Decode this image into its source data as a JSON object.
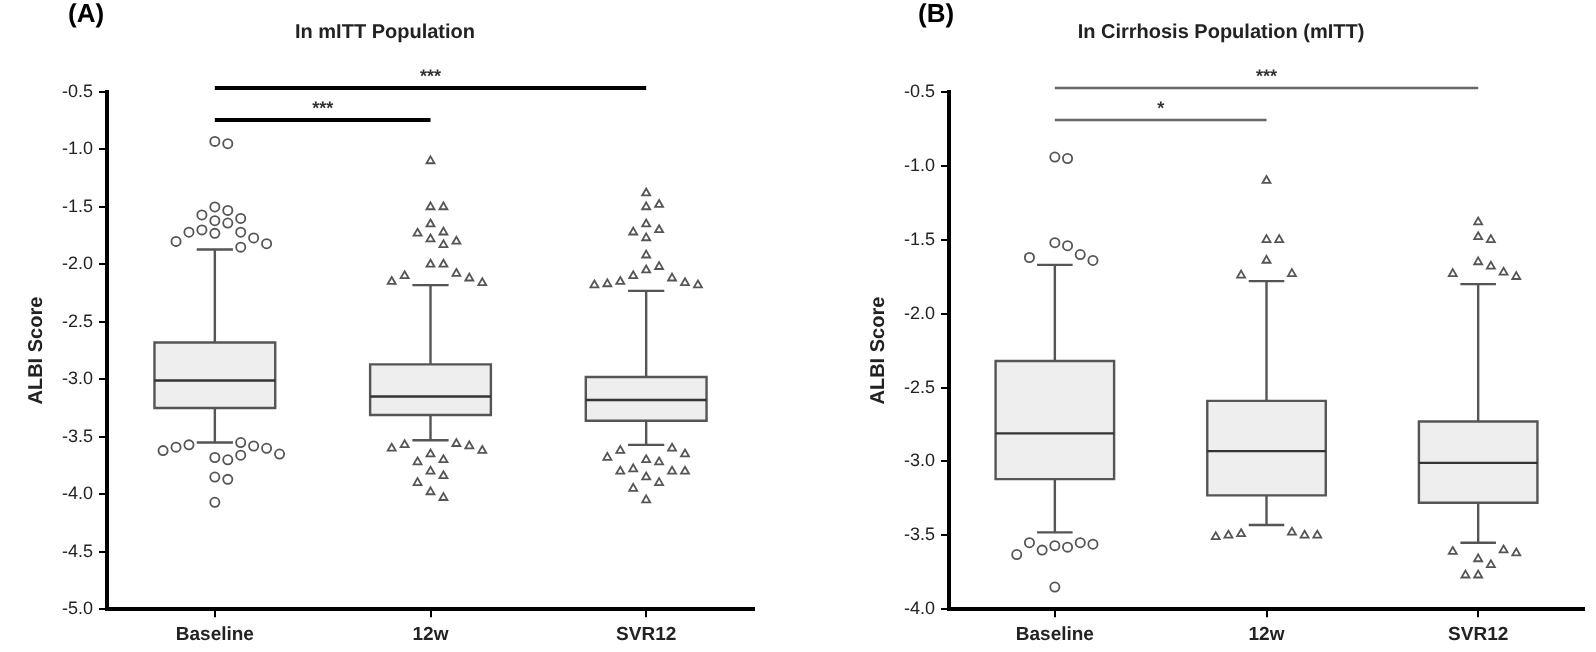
{
  "chart_data": [
    {
      "type": "box",
      "title": "In mITT Population",
      "ylabel": "ALBI Score",
      "annotations": [
        "(A)",
        "***",
        "***"
      ],
      "categories": [
        "Baseline",
        "12w",
        "SVR12"
      ],
      "ylim": [
        -5,
        -0.5
      ],
      "yticks": [
        {
          "value": -5,
          "label": "-5.0"
        },
        {
          "value": -4.5,
          "label": "-4.5"
        },
        {
          "value": -4,
          "label": "-4.0"
        },
        {
          "value": -3.5,
          "label": "-3.5"
        },
        {
          "value": -3,
          "label": "-3.0"
        },
        {
          "value": -2.5,
          "label": "-2.5"
        },
        {
          "value": -2,
          "label": "-2.0"
        },
        {
          "value": -1.5,
          "label": "-1.5"
        },
        {
          "value": -1,
          "label": "-1.0"
        },
        {
          "value": -0.5,
          "label": "-0.5"
        }
      ],
      "grid": false,
      "legend": false,
      "series": [
        {
          "type": "box",
          "color": "#eeeeee",
          "boxes": [
            {
              "low": -3.55,
              "q1": -3.25,
              "median": -3.01,
              "q3": -2.68,
              "high": -1.87
            },
            {
              "low": -3.53,
              "q1": -3.31,
              "median": -3.15,
              "q3": -2.87,
              "high": -2.18
            },
            {
              "low": -3.57,
              "q1": -3.36,
              "median": -3.18,
              "q3": -2.98,
              "high": -2.23
            }
          ]
        },
        {
          "type": "scatter",
          "marker": "circle",
          "color": "#555555",
          "x": [
            "Baseline",
            "Baseline",
            "Baseline",
            "Baseline",
            "Baseline",
            "Baseline",
            "Baseline",
            "Baseline",
            "Baseline",
            "Baseline",
            "Baseline",
            "Baseline",
            "Baseline",
            "Baseline",
            "Baseline",
            "Baseline",
            "Baseline",
            "Baseline",
            "Baseline",
            "Baseline",
            "Baseline",
            "Baseline",
            "Baseline",
            "Baseline",
            "Baseline",
            "Baseline",
            "Baseline",
            "Baseline",
            "Baseline"
          ],
          "values": [
            -0.93,
            -0.95,
            -1.5,
            -1.53,
            -1.57,
            -1.6,
            -1.62,
            -1.64,
            -1.7,
            -1.72,
            -1.72,
            -1.73,
            -1.77,
            -1.8,
            -1.82,
            -1.85,
            -3.55,
            -3.57,
            -3.58,
            -3.59,
            -3.6,
            -3.62,
            -3.65,
            -3.66,
            -3.68,
            -3.7,
            -3.85,
            -3.87,
            -4.07
          ]
        },
        {
          "type": "scatter",
          "marker": "triangle",
          "color": "#555555",
          "x": [
            "12w",
            "12w",
            "12w",
            "12w",
            "12w",
            "12w",
            "12w",
            "12w",
            "12w",
            "12w",
            "12w",
            "12w",
            "12w",
            "12w",
            "12w",
            "12w",
            "12w",
            "12w",
            "12w",
            "12w",
            "12w",
            "12w",
            "12w",
            "12w",
            "12w",
            "12w",
            "12w",
            "12w",
            "12w"
          ],
          "values": [
            -1.1,
            -1.5,
            -1.5,
            -1.65,
            -1.72,
            -1.73,
            -1.78,
            -1.8,
            -1.83,
            -2.0,
            -2.0,
            -2.08,
            -2.1,
            -2.12,
            -2.15,
            -2.16,
            -3.56,
            -3.57,
            -3.58,
            -3.6,
            -3.62,
            -3.65,
            -3.7,
            -3.72,
            -3.8,
            -3.84,
            -3.9,
            -3.98,
            -4.03
          ]
        },
        {
          "type": "scatter",
          "marker": "triangle",
          "color": "#555555",
          "x": [
            "SVR12",
            "SVR12",
            "SVR12",
            "SVR12",
            "SVR12",
            "SVR12",
            "SVR12",
            "SVR12",
            "SVR12",
            "SVR12",
            "SVR12",
            "SVR12",
            "SVR12",
            "SVR12",
            "SVR12",
            "SVR12",
            "SVR12",
            "SVR12",
            "SVR12",
            "SVR12",
            "SVR12",
            "SVR12",
            "SVR12",
            "SVR12",
            "SVR12",
            "SVR12",
            "SVR12",
            "SVR12",
            "SVR12",
            "SVR12",
            "SVR12"
          ],
          "values": [
            -1.38,
            -1.48,
            -1.5,
            -1.65,
            -1.7,
            -1.72,
            -1.77,
            -1.92,
            -2.02,
            -2.05,
            -2.1,
            -2.12,
            -2.15,
            -2.16,
            -2.17,
            -2.18,
            -2.18,
            -3.6,
            -3.62,
            -3.65,
            -3.68,
            -3.7,
            -3.72,
            -3.78,
            -3.8,
            -3.8,
            -3.8,
            -3.85,
            -3.9,
            -3.95,
            -4.05
          ]
        }
      ]
    },
    {
      "type": "box",
      "title": "In Cirrhosis Population (mITT)",
      "ylabel": "ALBI Score",
      "annotations": [
        "(B)",
        "*",
        "***"
      ],
      "categories": [
        "Baseline",
        "12w",
        "SVR12"
      ],
      "ylim": [
        -4,
        -0.5
      ],
      "yticks": [
        {
          "value": -4,
          "label": "-4.0"
        },
        {
          "value": -3.5,
          "label": "-3.5"
        },
        {
          "value": -3,
          "label": "-3.0"
        },
        {
          "value": -2.5,
          "label": "-2.5"
        },
        {
          "value": -2,
          "label": "-2.0"
        },
        {
          "value": -1.5,
          "label": "-1.5"
        },
        {
          "value": -1,
          "label": "-1.0"
        },
        {
          "value": -0.5,
          "label": "-0.5"
        }
      ],
      "grid": false,
      "legend": false,
      "series": [
        {
          "type": "box",
          "color": "#eeeeee",
          "boxes": [
            {
              "low": -3.48,
              "q1": -3.12,
              "median": -2.81,
              "q3": -2.32,
              "high": -1.67
            },
            {
              "low": -3.43,
              "q1": -3.23,
              "median": -2.93,
              "q3": -2.59,
              "high": -1.78
            },
            {
              "low": -3.55,
              "q1": -3.28,
              "median": -3.01,
              "q3": -2.73,
              "high": -1.8
            }
          ]
        },
        {
          "type": "scatter",
          "marker": "circle",
          "color": "#555555",
          "x": [
            "Baseline",
            "Baseline",
            "Baseline",
            "Baseline",
            "Baseline",
            "Baseline",
            "Baseline",
            "Baseline",
            "Baseline",
            "Baseline",
            "Baseline",
            "Baseline",
            "Baseline",
            "Baseline",
            "Baseline"
          ],
          "values": [
            -0.94,
            -0.95,
            -1.52,
            -1.54,
            -1.6,
            -1.62,
            -1.64,
            -3.55,
            -3.55,
            -3.56,
            -3.57,
            -3.58,
            -3.6,
            -3.63,
            -3.85
          ]
        },
        {
          "type": "scatter",
          "marker": "triangle",
          "color": "#555555",
          "x": [
            "12w",
            "12w",
            "12w",
            "12w",
            "12w",
            "12w",
            "12w",
            "12w",
            "12w",
            "12w",
            "12w",
            "12w"
          ],
          "values": [
            -1.1,
            -1.5,
            -1.5,
            -1.64,
            -1.73,
            -1.74,
            -3.48,
            -3.49,
            -3.5,
            -3.5,
            -3.5,
            -3.51
          ]
        },
        {
          "type": "scatter",
          "marker": "triangle",
          "color": "#555555",
          "x": [
            "SVR12",
            "SVR12",
            "SVR12",
            "SVR12",
            "SVR12",
            "SVR12",
            "SVR12",
            "SVR12",
            "SVR12",
            "SVR12",
            "SVR12",
            "SVR12",
            "SVR12",
            "SVR12",
            "SVR12"
          ],
          "values": [
            -1.38,
            -1.48,
            -1.5,
            -1.65,
            -1.68,
            -1.72,
            -1.73,
            -1.75,
            -3.6,
            -3.61,
            -3.62,
            -3.66,
            -3.7,
            -3.77,
            -3.77
          ]
        }
      ]
    }
  ]
}
